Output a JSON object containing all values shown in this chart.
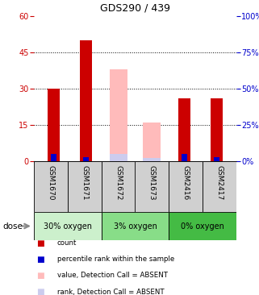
{
  "title": "GDS290 / 439",
  "samples": [
    "GSM1670",
    "GSM1671",
    "GSM1672",
    "GSM1673",
    "GSM2416",
    "GSM2417"
  ],
  "groups": [
    {
      "label": "30% oxygen",
      "color": "#ccf0cc",
      "samples": [
        0,
        1
      ]
    },
    {
      "label": "3% oxygen",
      "color": "#88dd88",
      "samples": [
        2,
        3
      ]
    },
    {
      "label": "0% oxygen",
      "color": "#44bb44",
      "samples": [
        4,
        5
      ]
    }
  ],
  "count": [
    30,
    50,
    0,
    0,
    26,
    26
  ],
  "percentile_rank": [
    5,
    3,
    0,
    0,
    5,
    3
  ],
  "absent_value": [
    0,
    0,
    38,
    16,
    0,
    0
  ],
  "absent_rank": [
    0,
    0,
    5,
    2,
    0,
    0
  ],
  "ylim_left": [
    0,
    60
  ],
  "ylim_right": [
    0,
    100
  ],
  "yticks_left": [
    0,
    15,
    30,
    45,
    60
  ],
  "yticks_right": [
    0,
    25,
    50,
    75,
    100
  ],
  "color_count": "#cc0000",
  "color_percentile": "#0000cc",
  "color_absent_value": "#ffbbbb",
  "color_absent_rank": "#ccccee",
  "figsize": [
    3.21,
    3.66
  ],
  "dpi": 100,
  "legend_items": [
    [
      "#cc0000",
      "count"
    ],
    [
      "#0000cc",
      "percentile rank within the sample"
    ],
    [
      "#ffbbbb",
      "value, Detection Call = ABSENT"
    ],
    [
      "#ccccee",
      "rank, Detection Call = ABSENT"
    ]
  ]
}
